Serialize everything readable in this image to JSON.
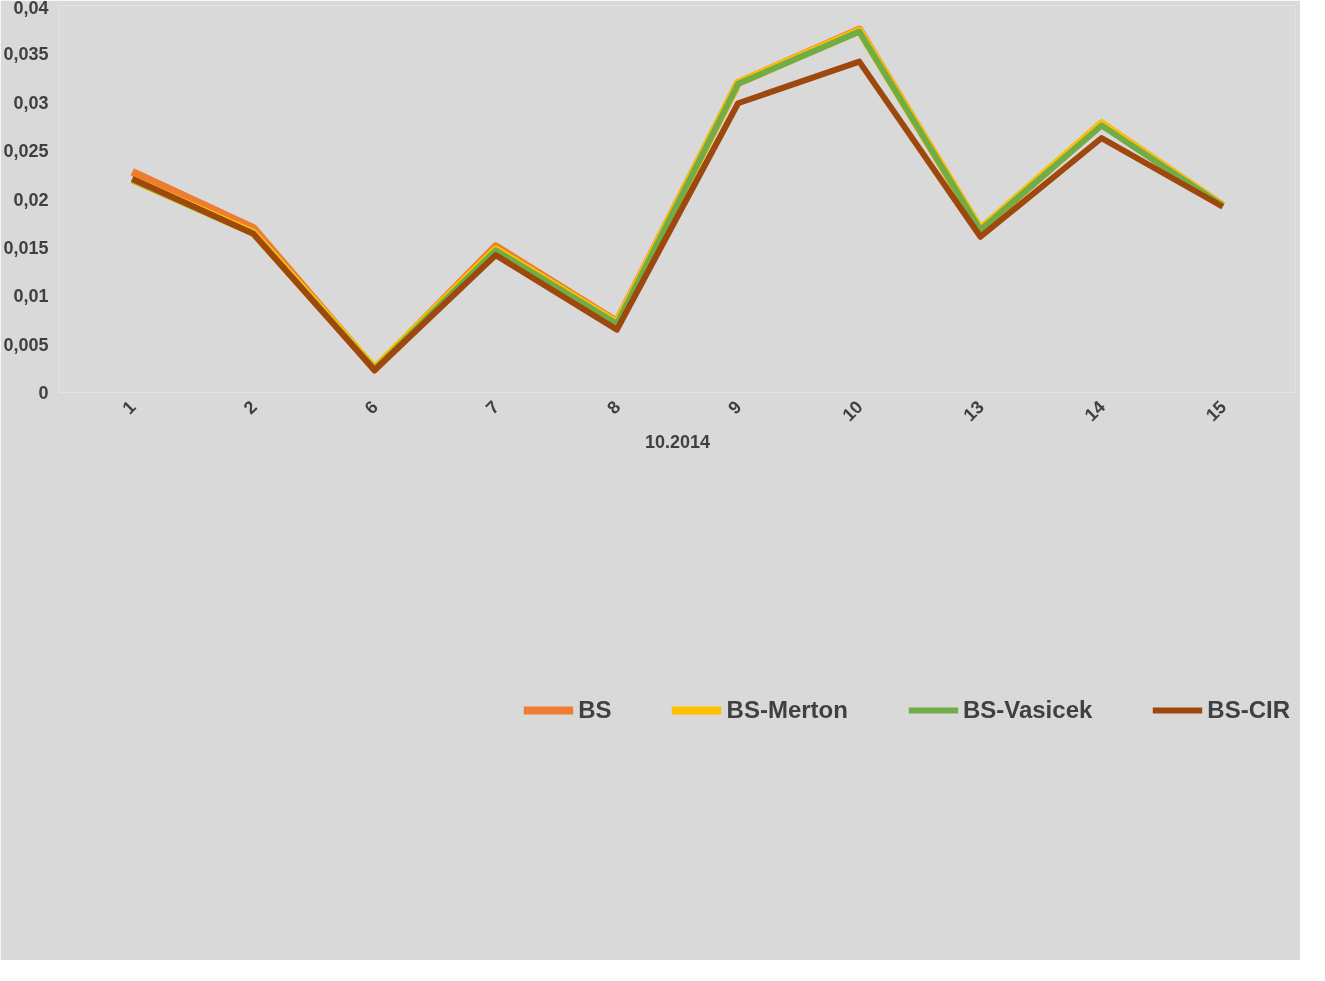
{
  "chart_data": {
    "type": "line",
    "xlabel": "10.2014",
    "categories": [
      "1",
      "2",
      "6",
      "7",
      "8",
      "9",
      "10",
      "13",
      "14",
      "15"
    ],
    "ylim": [
      0,
      0.04
    ],
    "yticks": [
      {
        "value": 0,
        "label": "0"
      },
      {
        "value": 0.005,
        "label": "0,005"
      },
      {
        "value": 0.01,
        "label": "0,01"
      },
      {
        "value": 0.015,
        "label": "0,015"
      },
      {
        "value": 0.02,
        "label": "0,02"
      },
      {
        "value": 0.025,
        "label": "0,025"
      },
      {
        "value": 0.03,
        "label": "0,03"
      },
      {
        "value": 0.035,
        "label": "0,035"
      },
      {
        "value": 0.04,
        "label": "0,04"
      }
    ],
    "grid": false,
    "legend": "bottom",
    "marker": "none",
    "line_style": "solid",
    "series": [
      {
        "name": "BS",
        "color": "#ed7d31",
        "values": [
          0.0228,
          0.017,
          0.0024,
          0.0151,
          0.0073,
          0.032,
          0.0375,
          0.0168,
          0.0278,
          0.0193
        ]
      },
      {
        "name": "BS-Merton",
        "color": "#ffc000",
        "values": [
          0.022,
          0.0165,
          0.0025,
          0.0148,
          0.0072,
          0.032,
          0.0374,
          0.0169,
          0.0278,
          0.0193
        ]
      },
      {
        "name": "BS-Vasicek",
        "color": "#70ad47",
        "values": [
          0.022,
          0.0164,
          0.0024,
          0.0147,
          0.0071,
          0.0319,
          0.0373,
          0.0168,
          0.0276,
          0.0193
        ]
      },
      {
        "name": "BS-CIR",
        "color": "#9e480e",
        "values": [
          0.0221,
          0.0164,
          0.0023,
          0.0142,
          0.0065,
          0.0299,
          0.0342,
          0.0161,
          0.0263,
          0.0192
        ]
      }
    ]
  }
}
